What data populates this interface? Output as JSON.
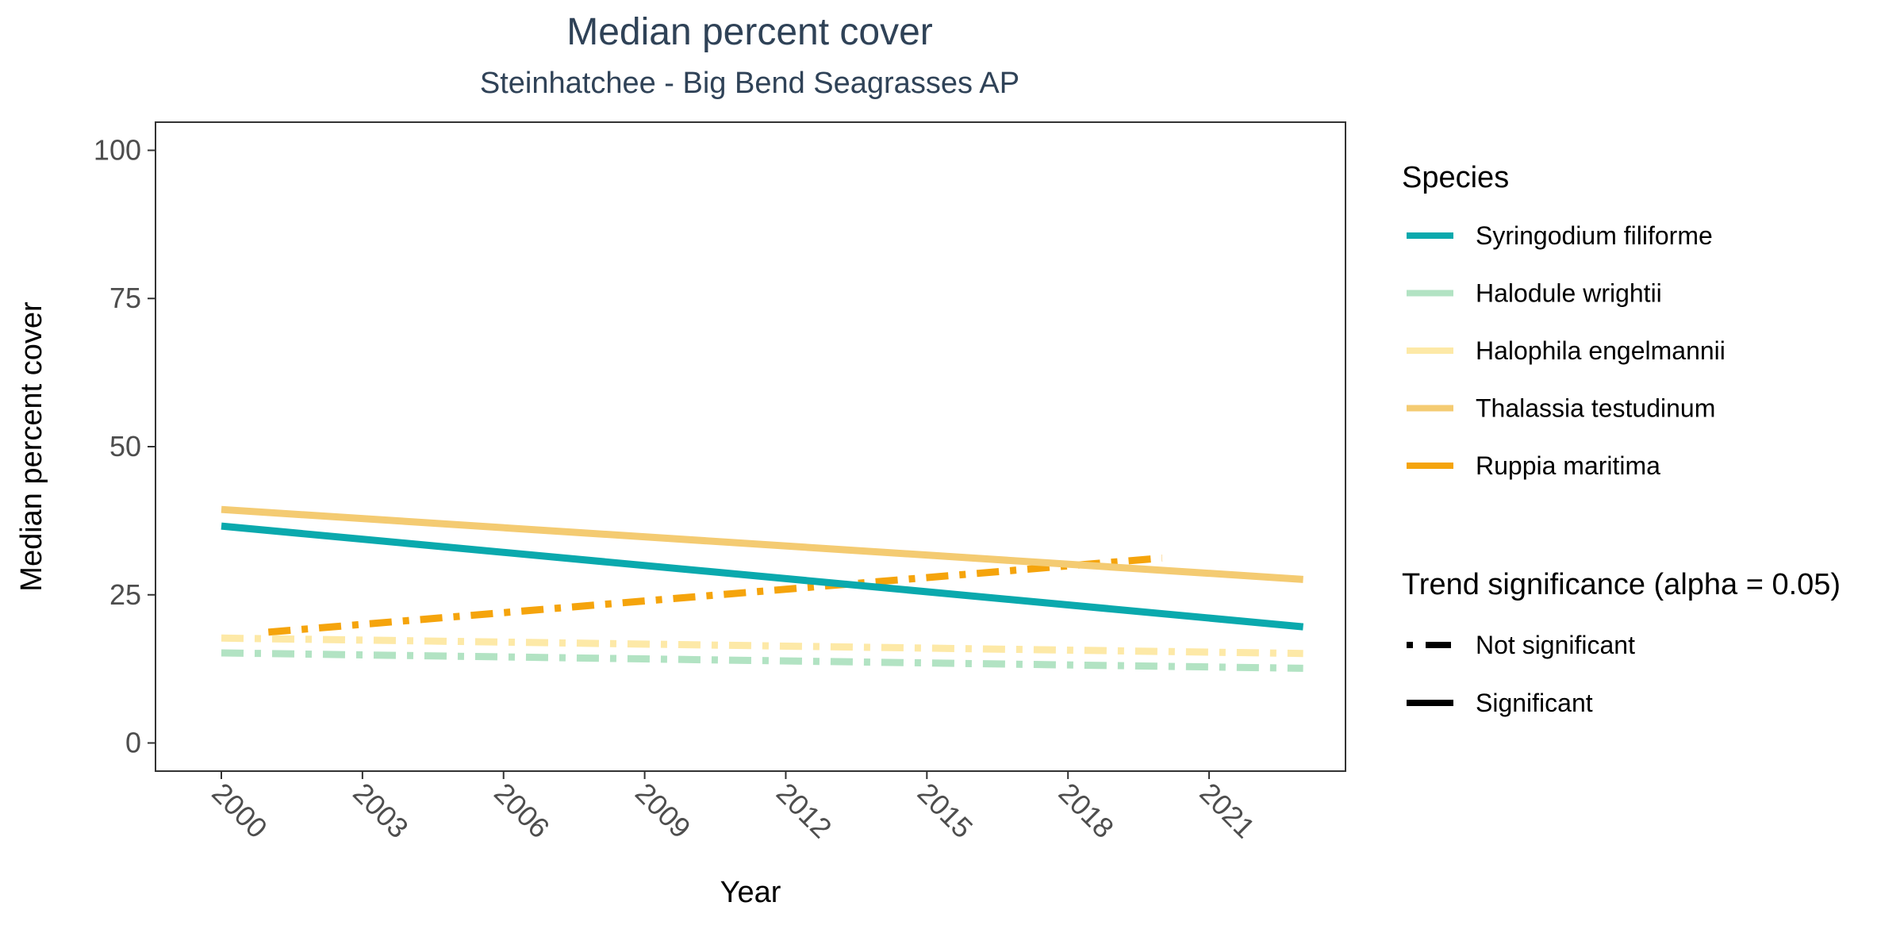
{
  "chart_data": {
    "type": "line",
    "title": "Median percent cover",
    "subtitle": "Steinhatchee - Big Bend Seagrasses AP",
    "xlabel": "Year",
    "ylabel": "Median percent cover",
    "xlim": [
      1998.6,
      2023.9
    ],
    "ylim": [
      -4.75,
      104.75
    ],
    "x_ticks": [
      2000,
      2003,
      2006,
      2009,
      2012,
      2015,
      2018,
      2021
    ],
    "y_ticks": [
      0,
      25,
      50,
      75,
      100
    ],
    "grid": false,
    "legend_position": "right",
    "series": [
      {
        "name": "Syringodium filiforme",
        "color": "#0aa9ad",
        "significance": "Significant",
        "x": [
          2000,
          2023
        ],
        "y": [
          36.6,
          19.6
        ]
      },
      {
        "name": "Halodule wrightii",
        "color": "#b2e3c3",
        "significance": "Not significant",
        "x": [
          2000,
          2023
        ],
        "y": [
          15.2,
          12.6
        ]
      },
      {
        "name": "Halophila engelmannii",
        "color": "#fde9a7",
        "significance": "Not significant",
        "x": [
          2000,
          2023
        ],
        "y": [
          17.7,
          15.1
        ]
      },
      {
        "name": "Thalassia testudinum",
        "color": "#f4cb72",
        "significance": "Significant",
        "x": [
          2000,
          2023
        ],
        "y": [
          39.4,
          27.6
        ]
      },
      {
        "name": "Ruppia maritima",
        "color": "#f5a40c",
        "significance": "Not significant",
        "x": [
          2001,
          2020
        ],
        "y": [
          18.7,
          31.2
        ]
      }
    ],
    "legend": {
      "species_title": "Species",
      "species": [
        "Syringodium filiforme",
        "Halodule wrightii",
        "Halophila engelmannii",
        "Thalassia testudinum",
        "Ruppia maritima"
      ],
      "trend_title": "Trend significance (alpha = 0.05)",
      "trend_items": [
        "Not significant",
        "Significant"
      ]
    }
  }
}
